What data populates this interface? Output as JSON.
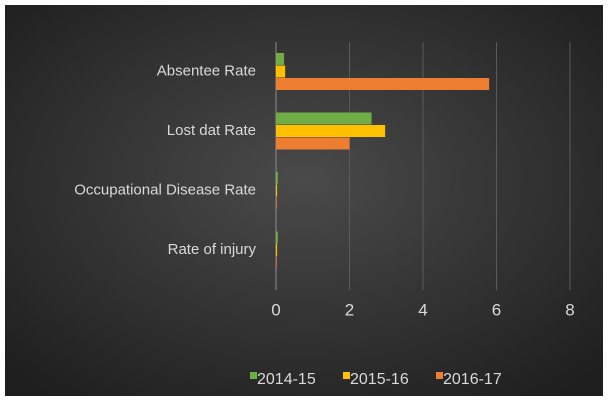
{
  "chart_data": {
    "type": "bar",
    "orientation": "horizontal",
    "categories": [
      "Absentee Rate",
      "Lost dat Rate",
      "Occupational Disease Rate",
      "Rate of injury"
    ],
    "series": [
      {
        "name": "2014-15",
        "color": "#70ad47",
        "values": [
          0.22,
          2.6,
          0.05,
          0.05
        ]
      },
      {
        "name": "2015-16",
        "color": "#ffc000",
        "values": [
          0.25,
          2.97,
          0.03,
          0.03
        ]
      },
      {
        "name": "2016-17",
        "color": "#ed7d31",
        "values": [
          5.8,
          2.0,
          0.02,
          0.02
        ]
      }
    ],
    "xlim": [
      0,
      8
    ],
    "xticks": [
      0,
      2,
      4,
      6,
      8
    ],
    "grid": true,
    "legend": "bottom"
  }
}
